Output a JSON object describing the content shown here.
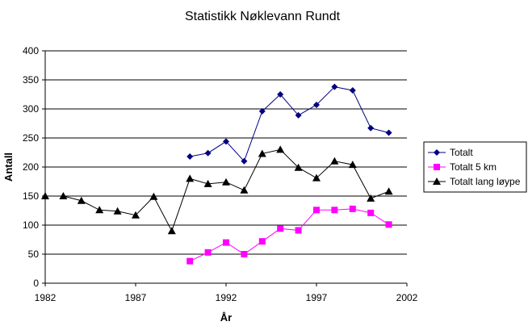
{
  "chart_data": {
    "type": "line",
    "title": "Statistikk Nøklevann Rundt",
    "xlabel": "År",
    "ylabel": "Antall",
    "xlim": [
      1982,
      2002
    ],
    "ylim": [
      0,
      400
    ],
    "x_ticks": [
      1982,
      1987,
      1992,
      1997,
      2002
    ],
    "y_ticks": [
      0,
      50,
      100,
      150,
      200,
      250,
      300,
      350,
      400
    ],
    "grid": "horizontal",
    "legend": "right",
    "series": [
      {
        "name": "Totalt",
        "color": "#000080",
        "marker": "diamond",
        "x": [
          1990,
          1991,
          1992,
          1993,
          1994,
          1995,
          1996,
          1997,
          1998,
          1999,
          2000,
          2001
        ],
        "y": [
          218,
          224,
          244,
          210,
          296,
          325,
          289,
          307,
          338,
          332,
          267,
          259
        ]
      },
      {
        "name": "Totalt 5 km",
        "color": "#ff00ff",
        "marker": "square",
        "x": [
          1990,
          1991,
          1992,
          1993,
          1994,
          1995,
          1996,
          1997,
          1998,
          1999,
          2000,
          2001
        ],
        "y": [
          38,
          53,
          70,
          50,
          72,
          94,
          91,
          126,
          126,
          128,
          121,
          101
        ]
      },
      {
        "name": "Totalt lang løype",
        "color": "#000000",
        "marker": "triangle",
        "x": [
          1982,
          1983,
          1984,
          1985,
          1986,
          1987,
          1988,
          1989,
          1990,
          1991,
          1992,
          1993,
          1994,
          1995,
          1996,
          1997,
          1998,
          1999,
          2000,
          2001
        ],
        "y": [
          150,
          150,
          142,
          126,
          124,
          117,
          149,
          90,
          180,
          171,
          174,
          160,
          223,
          230,
          199,
          181,
          210,
          204,
          146,
          158
        ]
      }
    ]
  }
}
